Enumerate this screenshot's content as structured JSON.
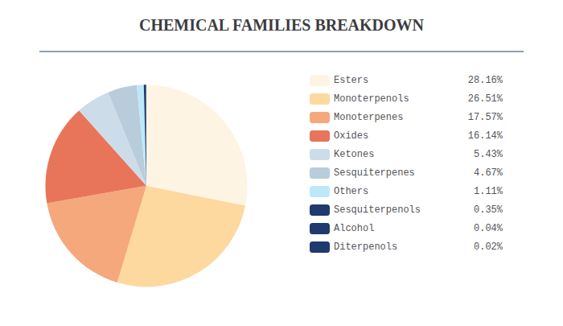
{
  "chart_data": {
    "type": "pie",
    "title": "CHEMICAL FAMILIES BREAKDOWN",
    "categories": [
      "Esters",
      "Monoterpenols",
      "Monoterpenes",
      "Oxides",
      "Ketones",
      "Sesquiterpenes",
      "Others",
      "Sesquiterpenols",
      "Alcohol",
      "Diterpenols"
    ],
    "values": [
      28.16,
      26.51,
      17.57,
      16.14,
      5.43,
      4.67,
      1.11,
      0.35,
      0.04,
      0.02
    ],
    "value_labels": [
      "28.16%",
      "26.51%",
      "17.57%",
      "16.14%",
      "5.43%",
      "4.67%",
      "1.11%",
      "0.35%",
      "0.04%",
      "0.02%"
    ],
    "colors": [
      "#fdf4e3",
      "#fdd9a0",
      "#f5a87c",
      "#e8755a",
      "#ccdce8",
      "#b8ccdc",
      "#bde8f8",
      "#1e3a6e",
      "#1e3a6e",
      "#1e3a6e"
    ],
    "legend": "right"
  }
}
